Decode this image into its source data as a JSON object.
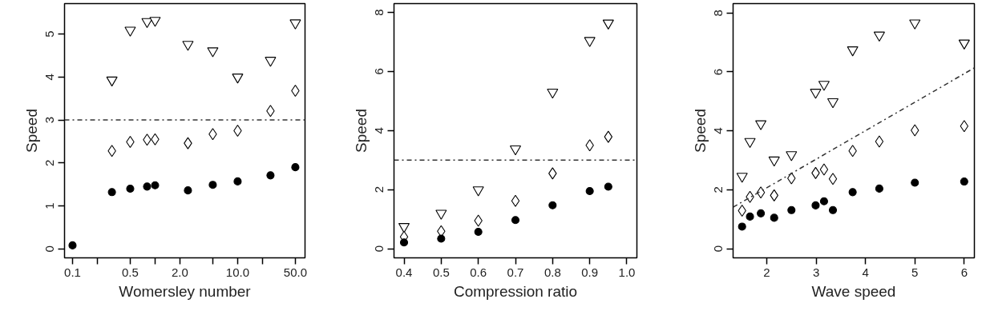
{
  "chart_data": [
    {
      "type": "scatter",
      "xlabel": "Womersley number",
      "ylabel": "Speed",
      "log": "x",
      "xlim": [
        0.08,
        65.5
      ],
      "ylim": [
        -0.21,
        5.71
      ],
      "xticks": [
        0.1,
        {
          "value": 0.2,
          "label": null
        },
        0.5,
        {
          "value": 1,
          "label": null
        },
        {
          "value": 2,
          "label": "2.0"
        },
        {
          "value": 5,
          "label": null
        },
        {
          "value": 10,
          "label": "10.0"
        },
        {
          "value": 20,
          "label": null
        },
        {
          "value": 50,
          "label": "50.0"
        }
      ],
      "yticks": [
        0,
        1,
        2,
        3,
        4,
        5
      ],
      "x": [
        0.1,
        0.3,
        0.5,
        0.8,
        1.0,
        2.5,
        5,
        10,
        25,
        50
      ],
      "series": [
        {
          "color": "#000000",
          "marker": "triangle",
          "values": [
            null,
            3.93,
            5.09,
            5.29,
            5.32,
            4.76,
            4.61,
            4.0,
            4.39,
            5.26
          ]
        },
        {
          "color": "#000000",
          "marker": "diamond",
          "values": [
            null,
            2.28,
            2.49,
            2.54,
            2.55,
            2.46,
            2.67,
            2.75,
            3.21,
            3.68
          ]
        },
        {
          "color": "#000000",
          "marker": "circle",
          "values": [
            0.08,
            1.32,
            1.4,
            1.45,
            1.48,
            1.36,
            1.49,
            1.57,
            1.71,
            1.9
          ]
        }
      ],
      "ref_lines": [
        {
          "axis": "y",
          "value": 3,
          "line_style": "dashed",
          "color": "#333333"
        }
      ]
    },
    {
      "type": "scatter",
      "xlabel": "Compression ratio",
      "ylabel": "Speed",
      "xlim": [
        0.373,
        1.027
      ],
      "ylim": [
        -0.31,
        8.3
      ],
      "xticks": [
        0.4,
        0.5,
        0.6,
        0.7,
        0.8,
        0.9,
        {
          "value": 1.0,
          "label": "1.0"
        }
      ],
      "yticks": [
        0,
        2,
        4,
        6,
        8
      ],
      "x": [
        0.4,
        0.5,
        0.6,
        0.7,
        0.8,
        0.9,
        0.95
      ],
      "series": [
        {
          "color": "#000000",
          "marker": "triangle",
          "values": [
            0.75,
            1.2,
            1.99,
            3.38,
            5.3,
            7.05,
            7.64
          ]
        },
        {
          "color": "#000000",
          "marker": "diamond",
          "values": [
            0.4,
            0.59,
            0.95,
            1.62,
            2.55,
            3.5,
            3.79
          ]
        },
        {
          "color": "#000000",
          "marker": "circle",
          "values": [
            0.21,
            0.34,
            0.57,
            0.97,
            1.47,
            1.95,
            2.1
          ]
        }
      ],
      "ref_lines": [
        {
          "axis": "y",
          "value": 3,
          "line_style": "dashed",
          "color": "#333333"
        }
      ]
    },
    {
      "type": "scatter",
      "xlabel": "Wave speed",
      "ylabel": "Speed",
      "xlim": [
        1.318,
        6.206
      ],
      "ylim": [
        -0.31,
        8.32
      ],
      "xticks": [
        2,
        3,
        4,
        5,
        6
      ],
      "yticks": [
        0,
        2,
        4,
        6,
        8
      ],
      "x": [
        1.5,
        1.66,
        1.88,
        2.15,
        2.5,
        2.99,
        3.16,
        3.34,
        3.74,
        4.28,
        5.0,
        6.0
      ],
      "series": [
        {
          "color": "#000000",
          "marker": "triangle",
          "values": [
            2.46,
            3.64,
            4.24,
            3.01,
            3.19,
            5.31,
            5.58,
            4.99,
            6.75,
            7.25,
            7.66,
            6.98
          ]
        },
        {
          "color": "#000000",
          "marker": "diamond",
          "values": [
            1.29,
            1.76,
            1.91,
            1.81,
            2.39,
            2.57,
            2.69,
            2.37,
            3.32,
            3.64,
            4.02,
            4.16
          ]
        },
        {
          "color": "#000000",
          "marker": "circle",
          "values": [
            0.75,
            1.09,
            1.2,
            1.05,
            1.31,
            1.47,
            1.61,
            1.31,
            1.92,
            2.04,
            2.24,
            2.28
          ]
        },
        {
          "type": "line",
          "color": "#333333",
          "line_style": "dashed",
          "x": [
            1.318,
            6.206
          ],
          "values": [
            1.41,
            6.14
          ]
        }
      ]
    }
  ]
}
